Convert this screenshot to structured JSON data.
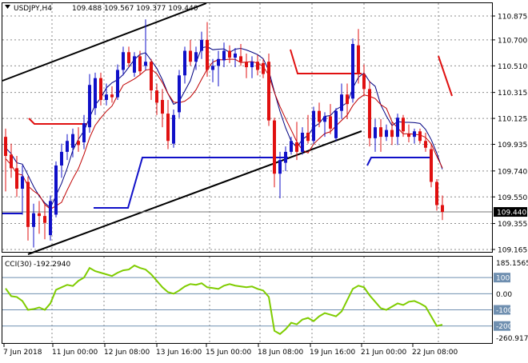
{
  "header": {
    "symbol_label": "USDJPY,H4",
    "ohlc": "109.488 109.567 109.377 109.440"
  },
  "indicator": {
    "label": "CCI(30)",
    "value": "-192.2940",
    "scale_max": "185.1565",
    "scale_min": "-260.9171",
    "levels": [
      "100",
      "0.00",
      "-100",
      "-200"
    ]
  },
  "price_axis": [
    "110.875",
    "110.700",
    "110.510",
    "110.315",
    "110.125",
    "109.935",
    "109.740",
    "109.550",
    "109.355",
    "109.165"
  ],
  "current_price": "109.440",
  "time_axis": [
    "7 Jun 2018",
    "11 Jun 00:00",
    "12 Jun 08:00",
    "13 Jun 16:00",
    "15 Jun 00:00",
    "18 Jun 08:00",
    "19 Jun 16:00",
    "21 Jun 00:00",
    "22 Jun 08:00"
  ],
  "colors": {
    "bull": "#1010c8",
    "bear": "#e01010",
    "cci": "#7fcc00",
    "level": "#6f8fb0"
  },
  "chart_data": {
    "type": "candlestick",
    "symbol": "USDJPY",
    "timeframe": "H4",
    "ylim": [
      109.165,
      110.875
    ],
    "cci_range": [
      -260.9171,
      185.1565
    ],
    "candles": [
      {
        "o": 109.99,
        "h": 110.05,
        "l": 109.59,
        "c": 109.85
      },
      {
        "o": 109.86,
        "h": 109.94,
        "l": 109.69,
        "c": 109.76
      },
      {
        "o": 109.76,
        "h": 109.85,
        "l": 109.55,
        "c": 109.61
      },
      {
        "o": 109.61,
        "h": 109.78,
        "l": 109.42,
        "c": 109.7
      },
      {
        "o": 109.66,
        "h": 109.7,
        "l": 109.23,
        "c": 109.33
      },
      {
        "o": 109.33,
        "h": 109.5,
        "l": 109.18,
        "c": 109.43
      },
      {
        "o": 109.43,
        "h": 109.52,
        "l": 109.28,
        "c": 109.41
      },
      {
        "o": 109.41,
        "h": 109.5,
        "l": 109.24,
        "c": 109.36
      },
      {
        "o": 109.27,
        "h": 109.56,
        "l": 109.23,
        "c": 109.52
      },
      {
        "o": 109.42,
        "h": 109.81,
        "l": 109.4,
        "c": 109.78
      },
      {
        "o": 109.78,
        "h": 109.94,
        "l": 109.69,
        "c": 109.88
      },
      {
        "o": 109.88,
        "h": 110.01,
        "l": 109.82,
        "c": 109.96
      },
      {
        "o": 109.91,
        "h": 110.05,
        "l": 109.84,
        "c": 110.01
      },
      {
        "o": 109.96,
        "h": 110.06,
        "l": 109.88,
        "c": 109.93
      },
      {
        "o": 109.95,
        "h": 110.15,
        "l": 109.9,
        "c": 110.09
      },
      {
        "o": 110.06,
        "h": 110.45,
        "l": 110.02,
        "c": 110.37
      },
      {
        "o": 110.2,
        "h": 110.46,
        "l": 110.15,
        "c": 110.42
      },
      {
        "o": 110.42,
        "h": 110.46,
        "l": 110.22,
        "c": 110.26
      },
      {
        "o": 110.26,
        "h": 110.38,
        "l": 110.22,
        "c": 110.3
      },
      {
        "o": 110.3,
        "h": 110.36,
        "l": 110.24,
        "c": 110.28
      },
      {
        "o": 110.28,
        "h": 110.52,
        "l": 110.26,
        "c": 110.48
      },
      {
        "o": 110.48,
        "h": 110.65,
        "l": 110.44,
        "c": 110.61
      },
      {
        "o": 110.61,
        "h": 110.65,
        "l": 110.5,
        "c": 110.53
      },
      {
        "o": 110.46,
        "h": 110.61,
        "l": 110.43,
        "c": 110.58
      },
      {
        "o": 110.58,
        "h": 110.62,
        "l": 110.44,
        "c": 110.47
      },
      {
        "o": 110.51,
        "h": 110.85,
        "l": 110.48,
        "c": 110.54
      },
      {
        "o": 110.54,
        "h": 110.56,
        "l": 110.26,
        "c": 110.33
      },
      {
        "o": 110.33,
        "h": 110.38,
        "l": 110.15,
        "c": 110.24
      },
      {
        "o": 110.26,
        "h": 110.34,
        "l": 110.06,
        "c": 110.16
      },
      {
        "o": 110.16,
        "h": 110.26,
        "l": 109.9,
        "c": 109.96
      },
      {
        "o": 109.94,
        "h": 110.19,
        "l": 109.91,
        "c": 110.15
      },
      {
        "o": 110.17,
        "h": 110.48,
        "l": 110.13,
        "c": 110.44
      },
      {
        "o": 110.44,
        "h": 110.65,
        "l": 110.38,
        "c": 110.62
      },
      {
        "o": 110.62,
        "h": 110.7,
        "l": 110.51,
        "c": 110.54
      },
      {
        "o": 110.54,
        "h": 110.65,
        "l": 110.48,
        "c": 110.61
      },
      {
        "o": 110.62,
        "h": 110.76,
        "l": 110.56,
        "c": 110.7
      },
      {
        "o": 110.7,
        "h": 110.83,
        "l": 110.43,
        "c": 110.48
      },
      {
        "o": 110.48,
        "h": 110.56,
        "l": 110.39,
        "c": 110.51
      },
      {
        "o": 110.51,
        "h": 110.62,
        "l": 110.36,
        "c": 110.56
      },
      {
        "o": 110.55,
        "h": 110.68,
        "l": 110.5,
        "c": 110.62
      },
      {
        "o": 110.62,
        "h": 110.66,
        "l": 110.53,
        "c": 110.57
      },
      {
        "o": 110.57,
        "h": 110.64,
        "l": 110.5,
        "c": 110.6
      },
      {
        "o": 110.58,
        "h": 110.67,
        "l": 110.51,
        "c": 110.54
      },
      {
        "o": 110.54,
        "h": 110.6,
        "l": 110.42,
        "c": 110.5
      },
      {
        "o": 110.5,
        "h": 110.58,
        "l": 110.42,
        "c": 110.54
      },
      {
        "o": 110.54,
        "h": 110.59,
        "l": 110.44,
        "c": 110.48
      },
      {
        "o": 110.53,
        "h": 110.56,
        "l": 110.42,
        "c": 110.45
      },
      {
        "o": 110.54,
        "h": 110.6,
        "l": 110.07,
        "c": 110.11
      },
      {
        "o": 110.11,
        "h": 110.13,
        "l": 109.62,
        "c": 109.72
      },
      {
        "o": 109.72,
        "h": 109.88,
        "l": 109.54,
        "c": 109.82
      },
      {
        "o": 109.8,
        "h": 109.92,
        "l": 109.74,
        "c": 109.88
      },
      {
        "o": 109.88,
        "h": 109.99,
        "l": 109.86,
        "c": 109.96
      },
      {
        "o": 109.95,
        "h": 110.1,
        "l": 109.82,
        "c": 109.88
      },
      {
        "o": 109.88,
        "h": 110.06,
        "l": 109.86,
        "c": 110.02
      },
      {
        "o": 110.02,
        "h": 110.15,
        "l": 109.94,
        "c": 109.96
      },
      {
        "o": 109.96,
        "h": 110.21,
        "l": 109.94,
        "c": 110.18
      },
      {
        "o": 110.18,
        "h": 110.24,
        "l": 110.06,
        "c": 110.1
      },
      {
        "o": 110.1,
        "h": 110.17,
        "l": 109.99,
        "c": 110.14
      },
      {
        "o": 110.14,
        "h": 110.23,
        "l": 110.01,
        "c": 110.05
      },
      {
        "o": 109.98,
        "h": 110.2,
        "l": 109.96,
        "c": 110.18
      },
      {
        "o": 110.18,
        "h": 110.38,
        "l": 110.12,
        "c": 110.3
      },
      {
        "o": 110.3,
        "h": 110.38,
        "l": 110.12,
        "c": 110.23
      },
      {
        "o": 110.27,
        "h": 110.71,
        "l": 110.24,
        "c": 110.67
      },
      {
        "o": 110.66,
        "h": 110.78,
        "l": 110.38,
        "c": 110.45
      },
      {
        "o": 110.45,
        "h": 110.52,
        "l": 110.29,
        "c": 110.34
      },
      {
        "o": 110.34,
        "h": 110.4,
        "l": 109.92,
        "c": 109.98
      },
      {
        "o": 109.98,
        "h": 110.12,
        "l": 109.88,
        "c": 110.06
      },
      {
        "o": 110.06,
        "h": 110.12,
        "l": 109.88,
        "c": 109.99
      },
      {
        "o": 109.99,
        "h": 110.08,
        "l": 109.96,
        "c": 110.04
      },
      {
        "o": 110.04,
        "h": 110.1,
        "l": 109.93,
        "c": 109.99
      },
      {
        "o": 109.99,
        "h": 110.16,
        "l": 109.93,
        "c": 110.13
      },
      {
        "o": 110.13,
        "h": 110.15,
        "l": 109.99,
        "c": 110.03
      },
      {
        "o": 110.01,
        "h": 110.08,
        "l": 109.95,
        "c": 109.99
      },
      {
        "o": 109.99,
        "h": 110.05,
        "l": 109.94,
        "c": 110.03
      },
      {
        "o": 110.03,
        "h": 110.05,
        "l": 109.94,
        "c": 109.96
      },
      {
        "o": 109.96,
        "h": 110.02,
        "l": 109.88,
        "c": 109.91
      },
      {
        "o": 109.9,
        "h": 109.93,
        "l": 109.62,
        "c": 109.66
      },
      {
        "o": 109.66,
        "h": 109.68,
        "l": 109.45,
        "c": 109.49
      },
      {
        "o": 109.49,
        "h": 109.56,
        "l": 109.38,
        "c": 109.44
      }
    ],
    "cci": [
      33,
      -15,
      -20,
      -45,
      -100,
      -95,
      -85,
      -100,
      -60,
      24,
      40,
      55,
      48,
      80,
      100,
      160,
      140,
      130,
      120,
      110,
      130,
      145,
      150,
      175,
      160,
      150,
      120,
      80,
      40,
      10,
      0,
      20,
      45,
      60,
      55,
      65,
      40,
      35,
      30,
      50,
      60,
      50,
      45,
      40,
      45,
      30,
      20,
      -20,
      -230,
      -250,
      -220,
      -180,
      -190,
      -160,
      -150,
      -170,
      -140,
      -120,
      -130,
      -140,
      -110,
      -40,
      30,
      50,
      40,
      -10,
      -50,
      -90,
      -100,
      -80,
      -60,
      -70,
      -50,
      -45,
      -60,
      -80,
      -140,
      -200,
      -192
    ],
    "cci_levels": [
      100,
      0,
      -100,
      -200
    ]
  }
}
